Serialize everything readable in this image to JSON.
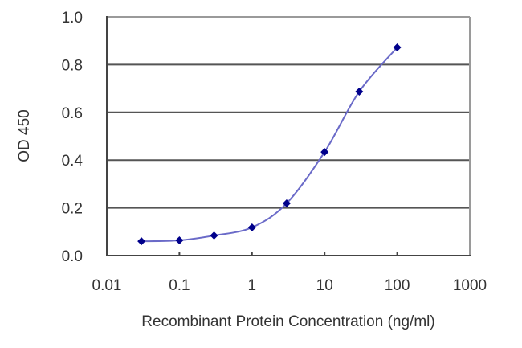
{
  "chart_data": {
    "type": "line",
    "title": "",
    "xlabel": "Recombinant Protein Concentration (ng/ml)",
    "ylabel": "OD 450",
    "xscale": "log",
    "xlim": [
      0.01,
      1000
    ],
    "ylim": [
      0.0,
      1.0
    ],
    "x_ticks": [
      "0.01",
      "0.1",
      "1",
      "10",
      "100",
      "1000"
    ],
    "y_ticks": [
      "0.0",
      "0.2",
      "0.4",
      "0.6",
      "0.8",
      "1.0"
    ],
    "grid": {
      "horizontal": true,
      "vertical": false
    },
    "legend": null,
    "series": [
      {
        "name": "OD 450",
        "color": "#00008b",
        "line_color": "#6a6ac8",
        "marker": "diamond",
        "x": [
          0.03,
          0.1,
          0.3,
          1,
          3,
          10,
          30,
          100
        ],
        "values": [
          0.06,
          0.064,
          0.084,
          0.118,
          0.219,
          0.434,
          0.687,
          0.872
        ]
      }
    ]
  }
}
